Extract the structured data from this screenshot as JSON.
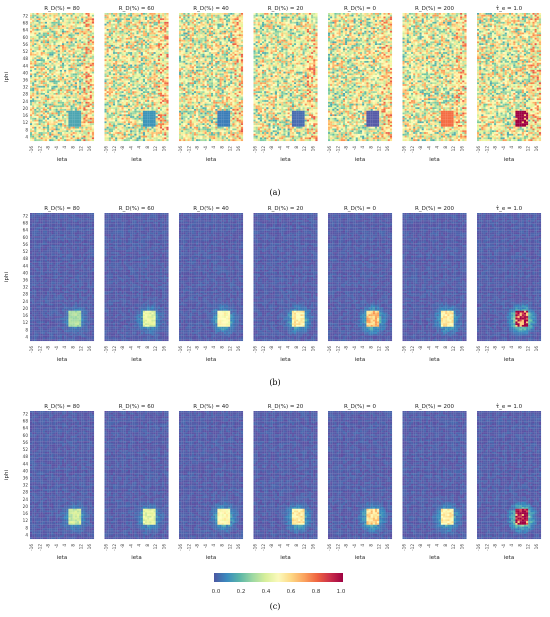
{
  "figure": {
    "rows": [
      {
        "caption": "(a)",
        "titles": [
          "R_D(%) = 80",
          "R_D(%) = 60",
          "R_D(%) = 40",
          "R_D(%) = 20",
          "R_D(%) = 0",
          "R_D(%) = 200",
          "τ̂_e = 1.0"
        ]
      },
      {
        "caption": "(b)",
        "titles": [
          "R_D(%) = 80",
          "R_D(%) = 60",
          "R_D(%) = 40",
          "R_D(%) = 20",
          "R_D(%) = 0",
          "R_D(%) = 200",
          "τ̂_e = 1.0"
        ]
      },
      {
        "caption": "(c)",
        "titles": [
          "R_D(%) = 80",
          "R_D(%) = 60",
          "R_D(%) = 40",
          "R_D(%) = 20",
          "R_D(%) = 0",
          "R_D(%) = 200",
          "τ̂_e = 1.0"
        ]
      }
    ],
    "colorbar": {
      "ticks": [
        "0.0",
        "0.2",
        "0.4",
        "0.6",
        "0.8",
        "1.0"
      ],
      "colors": [
        "#5e4fa2",
        "#3288bd",
        "#66c2a5",
        "#abdda4",
        "#e6f598",
        "#ffffbf",
        "#fee08b",
        "#fdae61",
        "#f46d43",
        "#d53e4f",
        "#9e0142"
      ]
    }
  },
  "chart_data": {
    "type": "heatmap",
    "xlabel": "ieta",
    "ylabel": "iphi",
    "x_ticks": [
      "-16",
      "-12",
      "-8",
      "-4",
      "4",
      "8",
      "12",
      "16"
    ],
    "y_ticks": [
      "4",
      "8",
      "12",
      "16",
      "20",
      "24",
      "28",
      "32",
      "36",
      "40",
      "44",
      "48",
      "52",
      "56",
      "60",
      "64",
      "68",
      "72"
    ],
    "color_range": [
      0.0,
      1.0
    ],
    "rows": [
      {
        "label": "(a)",
        "background": "noisy",
        "panels": [
          {
            "title": "R_D(%) = 80",
            "square_value": 0.15
          },
          {
            "title": "R_D(%) = 60",
            "square_value": 0.12
          },
          {
            "title": "R_D(%) = 40",
            "square_value": 0.08
          },
          {
            "title": "R_D(%) = 20",
            "square_value": 0.05
          },
          {
            "title": "R_D(%) = 0",
            "square_value": 0.02
          },
          {
            "title": "R_D(%) = 200",
            "square_value": 0.8
          },
          {
            "title": "τ̂_e = 1.0",
            "square_value": 1.0
          }
        ]
      },
      {
        "label": "(b)",
        "background": "low",
        "panels": [
          {
            "title": "R_D(%) = 80",
            "square_value": 0.3
          },
          {
            "title": "R_D(%) = 60",
            "square_value": 0.4
          },
          {
            "title": "R_D(%) = 40",
            "square_value": 0.5
          },
          {
            "title": "R_D(%) = 20",
            "square_value": 0.55
          },
          {
            "title": "R_D(%) = 0",
            "square_value": 0.65
          },
          {
            "title": "R_D(%) = 200",
            "square_value": 0.55
          },
          {
            "title": "τ̂_e = 1.0",
            "square_value": 1.0
          }
        ]
      },
      {
        "label": "(c)",
        "background": "low",
        "panels": [
          {
            "title": "R_D(%) = 80",
            "square_value": 0.35
          },
          {
            "title": "R_D(%) = 60",
            "square_value": 0.4
          },
          {
            "title": "R_D(%) = 40",
            "square_value": 0.5
          },
          {
            "title": "R_D(%) = 20",
            "square_value": 0.55
          },
          {
            "title": "R_D(%) = 0",
            "square_value": 0.6
          },
          {
            "title": "R_D(%) = 200",
            "square_value": 0.55
          },
          {
            "title": "τ̂_e = 1.0",
            "square_value": 1.0
          }
        ]
      }
    ]
  }
}
